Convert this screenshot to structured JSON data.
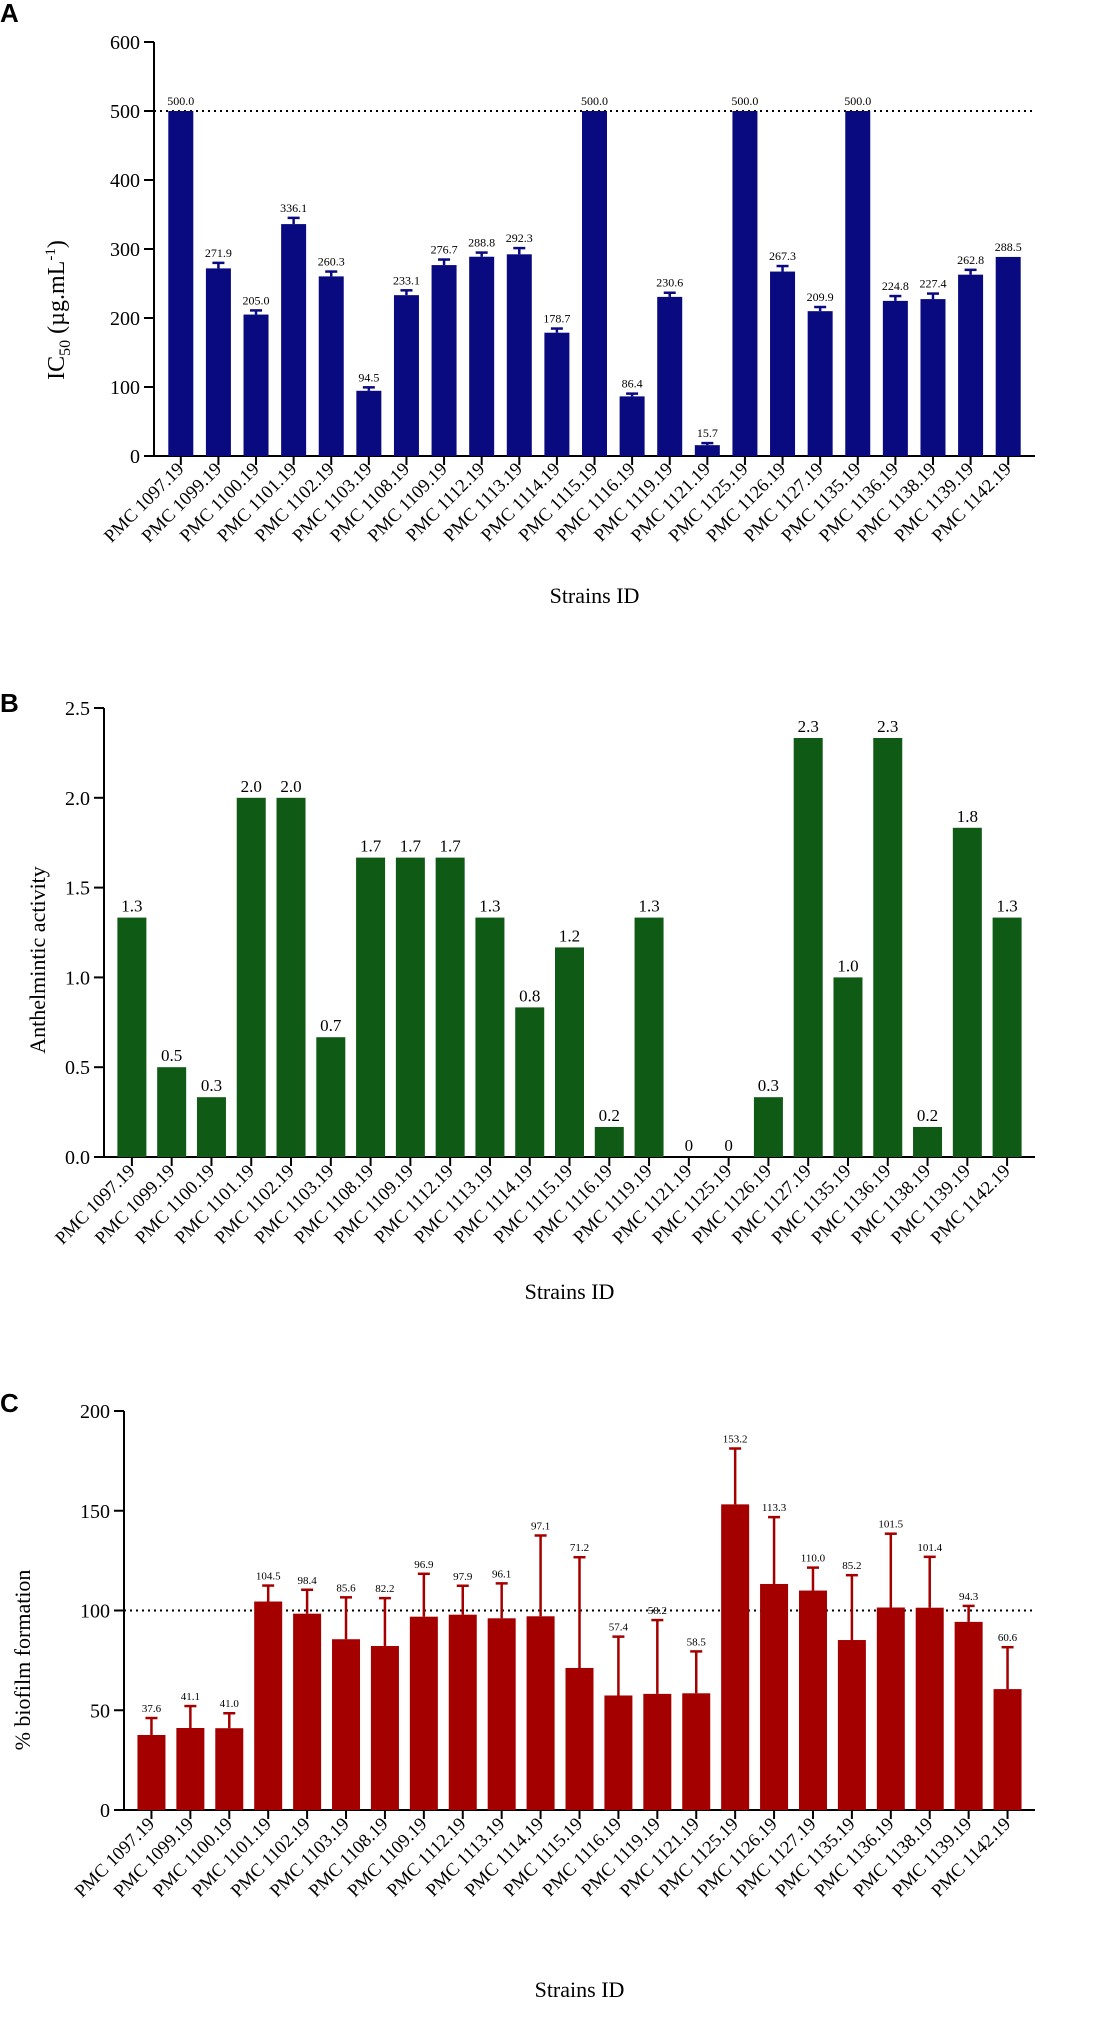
{
  "chart_data": [
    {
      "panel": "A",
      "type": "bar",
      "title": "",
      "xlabel": "Strains ID",
      "ylabel": "IC50 (µg.mL-1)",
      "ylabel_main": "IC",
      "ylabel_sub": "50",
      "ylabel_unit": " (µg.mL",
      "ylabel_sup": "-1",
      "ylabel_close": ")",
      "ylim": [
        0,
        600
      ],
      "yticks": [
        0,
        100,
        200,
        300,
        400,
        500,
        600
      ],
      "ytick_labels": [
        "0",
        "100",
        "200",
        "300",
        "400",
        "500",
        "600"
      ],
      "reference_line": 500,
      "bar_color": "#0a0a80",
      "categories": [
        "PMC 1097.19",
        "PMC 1099.19",
        "PMC 1100.19",
        "PMC 1101.19",
        "PMC 1102.19",
        "PMC 1103.19",
        "PMC 1108.19",
        "PMC 1109.19",
        "PMC 1112.19",
        "PMC 1113.19",
        "PMC 1114.19",
        "PMC 1115.19",
        "PMC 1116.19",
        "PMC 1119.19",
        "PMC 1121.19",
        "PMC 1125.19",
        "PMC 1126.19",
        "PMC 1127.19",
        "PMC 1135.19",
        "PMC 1136.19",
        "PMC 1138.19",
        "PMC 1139.19",
        "PMC 1142.19"
      ],
      "values": [
        500.0,
        271.9,
        205.0,
        336.1,
        260.3,
        94.5,
        233.1,
        276.7,
        288.8,
        292.3,
        178.7,
        500.0,
        86.4,
        230.6,
        15.7,
        500.0,
        267.3,
        209.9,
        500.0,
        224.8,
        227.4,
        262.8,
        288.5
      ],
      "errors": [
        0,
        8,
        6,
        9,
        7,
        5,
        7,
        8,
        6,
        9,
        6,
        0,
        4,
        6,
        3,
        0,
        8,
        6,
        0,
        7,
        8,
        7,
        0
      ],
      "value_labels": [
        "500.0",
        "271.9",
        "205.0",
        "336.1",
        "260.3",
        "94.5",
        "233.1",
        "276.7",
        "288.8",
        "292.3",
        "178.7",
        "500.0",
        "86.4",
        "230.6",
        "15.7",
        "500.0",
        "267.3",
        "209.9",
        "500.0",
        "224.8",
        "227.4",
        "262.8",
        "288.5"
      ]
    },
    {
      "panel": "B",
      "type": "bar",
      "title": "",
      "xlabel": "Strains ID",
      "ylabel": "Anthelmintic activity",
      "ylim": [
        0,
        2.5
      ],
      "yticks": [
        0,
        0.5,
        1.0,
        1.5,
        2.0,
        2.5
      ],
      "ytick_labels": [
        "0.0",
        "0.5",
        "1.0",
        "1.5",
        "2.0",
        "2.5"
      ],
      "bar_color": "#0f5a14",
      "categories": [
        "PMC 1097.19",
        "PMC 1099.19",
        "PMC 1100.19",
        "PMC 1101.19",
        "PMC 1102.19",
        "PMC 1103.19",
        "PMC 1108.19",
        "PMC 1109.19",
        "PMC 1112.19",
        "PMC 1113.19",
        "PMC 1114.19",
        "PMC 1115.19",
        "PMC 1116.19",
        "PMC 1119.19",
        "PMC 1121.19",
        "PMC 1125.19",
        "PMC 1126.19",
        "PMC 1127.19",
        "PMC 1135.19",
        "PMC 1136.19",
        "PMC 1138.19",
        "PMC 1139.19",
        "PMC 1142.19"
      ],
      "values": [
        1.333,
        0.5,
        0.333,
        2.0,
        2.0,
        0.667,
        1.667,
        1.667,
        1.667,
        1.333,
        0.833,
        1.167,
        0.167,
        1.333,
        0,
        0,
        0.333,
        2.333,
        1.0,
        2.333,
        0.167,
        1.833,
        1.333
      ],
      "value_labels": [
        "1.3",
        "0.5",
        "0.3",
        "2.0",
        "2.0",
        "0.7",
        "1.7",
        "1.7",
        "1.7",
        "1.3",
        "0.8",
        "1.2",
        "0.2",
        "1.3",
        "0",
        "0",
        "0.3",
        "2.3",
        "1.0",
        "2.3",
        "0.2",
        "1.8",
        "1.3"
      ]
    },
    {
      "panel": "C",
      "type": "bar",
      "title": "",
      "xlabel": "Strains ID",
      "ylabel": "% biofilm formation",
      "ylim": [
        0,
        200
      ],
      "yticks": [
        0,
        50,
        100,
        150,
        200
      ],
      "ytick_labels": [
        "0",
        "50",
        "100",
        "150",
        "200"
      ],
      "reference_line": 100,
      "bar_color": "#a50000",
      "categories": [
        "PMC 1097.19",
        "PMC 1099.19",
        "PMC 1100.19",
        "PMC 1101.19",
        "PMC 1102.19",
        "PMC 1103.19",
        "PMC 1108.19",
        "PMC 1109.19",
        "PMC 1112.19",
        "PMC 1113.19",
        "PMC 1114.19",
        "PMC 1115.19",
        "PMC 1116.19",
        "PMC 1119.19",
        "PMC 1121.19",
        "PMC 1125.19",
        "PMC 1126.19",
        "PMC 1127.19",
        "PMC 1135.19",
        "PMC 1136.19",
        "PMC 1138.19",
        "PMC 1139.19",
        "PMC 1142.19"
      ],
      "values": [
        37.6,
        41.1,
        41.0,
        104.5,
        98.4,
        85.6,
        82.2,
        96.9,
        97.9,
        96.1,
        97.1,
        71.2,
        57.4,
        58.2,
        58.5,
        153.2,
        113.3,
        110.0,
        85.2,
        101.5,
        101.4,
        94.3,
        60.6
      ],
      "errors": [
        8.5,
        11,
        7.5,
        8,
        12,
        21,
        24,
        21.5,
        14.5,
        17.5,
        40.5,
        55.5,
        29.5,
        37,
        21,
        28,
        33.5,
        11.5,
        32.5,
        37,
        25.5,
        8,
        21
      ],
      "value_labels": [
        "37.6",
        "41.1",
        "41.0",
        "104.5",
        "98.4",
        "85.6",
        "82.2",
        "96.9",
        "97.9",
        "96.1",
        "97.1",
        "71.2",
        "57.4",
        "58.2",
        "58.5",
        "153.2",
        "113.3",
        "110.0",
        "85.2",
        "101.5",
        "101.4",
        "94.3",
        "60.6"
      ]
    }
  ]
}
